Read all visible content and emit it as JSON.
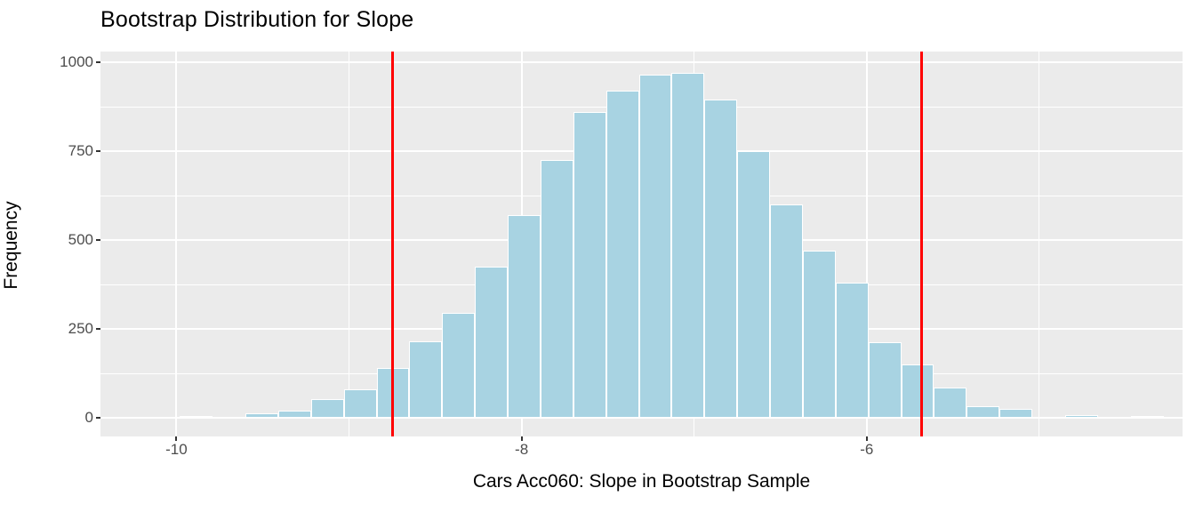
{
  "chart_data": {
    "type": "histogram",
    "title": "Bootstrap Distribution for Slope",
    "xlabel": "Cars Acc060: Slope in Bootstrap Sample",
    "ylabel": "Frequency",
    "grid": true,
    "legend": false,
    "xlim": [
      -10.44,
      -4.17
    ],
    "ylim": [
      -52,
      1030
    ],
    "bin_width": 0.19,
    "bins": [
      {
        "left": -10.17,
        "count": 3
      },
      {
        "left": -9.98,
        "count": 5
      },
      {
        "left": -9.79,
        "count": 2
      },
      {
        "left": -9.6,
        "count": 13
      },
      {
        "left": -9.41,
        "count": 20
      },
      {
        "left": -9.22,
        "count": 52
      },
      {
        "left": -9.03,
        "count": 80
      },
      {
        "left": -8.84,
        "count": 140
      },
      {
        "left": -8.65,
        "count": 215
      },
      {
        "left": -8.46,
        "count": 295
      },
      {
        "left": -8.27,
        "count": 425
      },
      {
        "left": -8.08,
        "count": 570
      },
      {
        "left": -7.89,
        "count": 725
      },
      {
        "left": -7.7,
        "count": 860
      },
      {
        "left": -7.51,
        "count": 920
      },
      {
        "left": -7.32,
        "count": 965
      },
      {
        "left": -7.13,
        "count": 970
      },
      {
        "left": -6.94,
        "count": 895
      },
      {
        "left": -6.75,
        "count": 750
      },
      {
        "left": -6.56,
        "count": 600
      },
      {
        "left": -6.37,
        "count": 470
      },
      {
        "left": -6.18,
        "count": 380
      },
      {
        "left": -5.99,
        "count": 212
      },
      {
        "left": -5.8,
        "count": 150
      },
      {
        "left": -5.61,
        "count": 85
      },
      {
        "left": -5.42,
        "count": 32
      },
      {
        "left": -5.23,
        "count": 25
      },
      {
        "left": -5.04,
        "count": 3
      },
      {
        "left": -4.85,
        "count": 8
      },
      {
        "left": -4.66,
        "count": 0
      },
      {
        "left": -4.47,
        "count": 5
      }
    ],
    "x_ticks": [
      {
        "value": -10,
        "label": "-10"
      },
      {
        "value": -8,
        "label": "-8"
      },
      {
        "value": -6,
        "label": "-6"
      }
    ],
    "x_minor_ticks": [
      -9,
      -7,
      -5
    ],
    "y_ticks": [
      {
        "value": 0,
        "label": "0"
      },
      {
        "value": 250,
        "label": "250"
      },
      {
        "value": 500,
        "label": "500"
      },
      {
        "value": 750,
        "label": "750"
      },
      {
        "value": 1000,
        "label": "1000"
      }
    ],
    "y_minor_ticks": [
      125,
      375,
      625,
      875
    ],
    "vlines": [
      {
        "x": -8.75,
        "name": "ci-lower"
      },
      {
        "x": -5.68,
        "name": "ci-upper"
      }
    ],
    "colors": {
      "bar_fill": "#A8D3E2",
      "bar_border": "#FFFFFF",
      "panel_background": "#EBEBEB",
      "gridline": "#FFFFFF",
      "vline": "#FF0000",
      "axis_text": "#4D4D4D",
      "title_text": "#000000"
    }
  }
}
